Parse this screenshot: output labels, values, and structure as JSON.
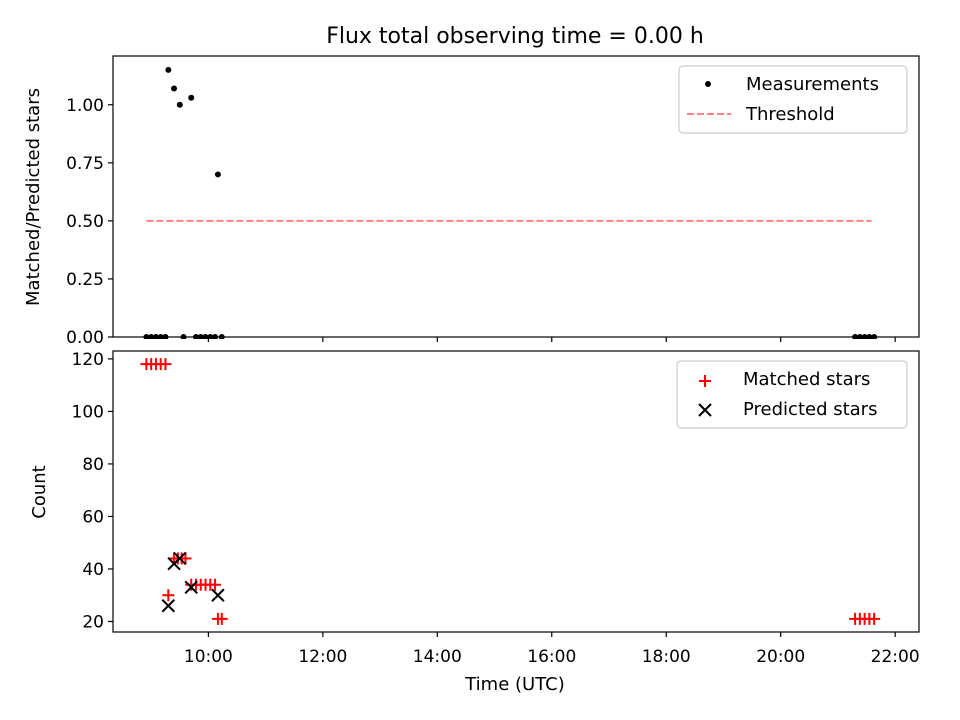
{
  "chart_data": [
    {
      "type": "scatter",
      "title": "Flux total observing time = 0.00 h",
      "ylabel": "Matched/Predicted stars",
      "xlabel": "",
      "xlim": [
        "08:20",
        "22:25"
      ],
      "ylim": [
        0,
        1.21
      ],
      "yticks": [
        "0.00",
        "0.25",
        "0.50",
        "0.75",
        "1.00"
      ],
      "grid": false,
      "legend": {
        "placement": "top-right",
        "entries": [
          "Measurements",
          "Threshold"
        ]
      },
      "series": [
        {
          "name": "Measurements",
          "style": "dot",
          "color": "#000000",
          "points": [
            [
              "08:55",
              0
            ],
            [
              "09:00",
              0
            ],
            [
              "09:05",
              0
            ],
            [
              "09:10",
              0
            ],
            [
              "09:15",
              0
            ],
            [
              "09:18",
              1.15
            ],
            [
              "09:24",
              1.07
            ],
            [
              "09:30",
              1.0
            ],
            [
              "09:34",
              0
            ],
            [
              "09:42",
              1.03
            ],
            [
              "09:47",
              0
            ],
            [
              "09:52",
              0
            ],
            [
              "09:57",
              0
            ],
            [
              "10:02",
              0
            ],
            [
              "10:07",
              0
            ],
            [
              "10:10",
              0.7
            ],
            [
              "10:14",
              0
            ],
            [
              "21:18",
              0
            ],
            [
              "21:23",
              0
            ],
            [
              "21:28",
              0
            ],
            [
              "21:33",
              0
            ],
            [
              "21:38",
              0
            ]
          ]
        },
        {
          "name": "Threshold",
          "style": "dashed-line",
          "color": "#ff8080",
          "points": [
            [
              "08:55",
              0.5
            ],
            [
              "21:35",
              0.5
            ]
          ]
        }
      ]
    },
    {
      "type": "scatter",
      "title": "",
      "ylabel": "Count",
      "xlabel": "Time (UTC)",
      "xlim": [
        "08:20",
        "22:25"
      ],
      "ylim": [
        16,
        123
      ],
      "yticks": [
        "20",
        "40",
        "60",
        "80",
        "100",
        "120"
      ],
      "xticks": [
        "10:00",
        "12:00",
        "14:00",
        "16:00",
        "18:00",
        "20:00",
        "22:00"
      ],
      "grid": false,
      "legend": {
        "placement": "top-right",
        "entries": [
          "Matched stars",
          "Predicted stars"
        ]
      },
      "series": [
        {
          "name": "Matched stars",
          "style": "plus",
          "color": "#ff0000",
          "points": [
            [
              "08:55",
              118
            ],
            [
              "09:00",
              118
            ],
            [
              "09:05",
              118
            ],
            [
              "09:10",
              118
            ],
            [
              "09:15",
              118
            ],
            [
              "09:18",
              30
            ],
            [
              "09:24",
              44
            ],
            [
              "09:28",
              44
            ],
            [
              "09:32",
              44
            ],
            [
              "09:36",
              44
            ],
            [
              "09:42",
              34
            ],
            [
              "09:47",
              34
            ],
            [
              "09:52",
              34
            ],
            [
              "09:57",
              34
            ],
            [
              "10:02",
              34
            ],
            [
              "10:07",
              34
            ],
            [
              "10:10",
              21
            ],
            [
              "10:14",
              21
            ],
            [
              "21:18",
              21
            ],
            [
              "21:23",
              21
            ],
            [
              "21:28",
              21
            ],
            [
              "21:33",
              21
            ],
            [
              "21:38",
              21
            ]
          ]
        },
        {
          "name": "Predicted stars",
          "style": "x",
          "color": "#000000",
          "points": [
            [
              "09:18",
              26
            ],
            [
              "09:24",
              42
            ],
            [
              "09:30",
              44
            ],
            [
              "09:42",
              33
            ],
            [
              "10:10",
              30
            ]
          ]
        }
      ]
    }
  ]
}
